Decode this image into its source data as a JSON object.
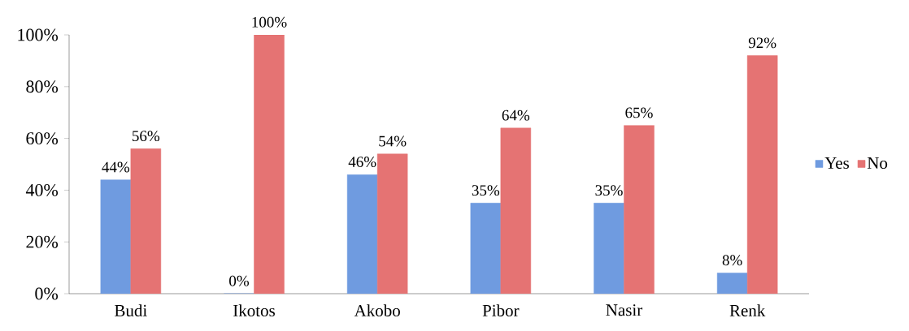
{
  "chart_data": {
    "type": "bar",
    "categories": [
      "Budi",
      "Ikotos",
      "Akobo",
      "Pibor",
      "Nasir",
      "Renk"
    ],
    "series": [
      {
        "name": "Yes",
        "color": "#6f9be0",
        "values": [
          44,
          0,
          46,
          35,
          35,
          8
        ],
        "value_labels": [
          "44%",
          "0%",
          "46%",
          "35%",
          "35%",
          "8%"
        ]
      },
      {
        "name": "No",
        "color": "#e57373",
        "values": [
          56,
          100,
          54,
          64,
          65,
          92
        ],
        "value_labels": [
          "56%",
          "100%",
          "54%",
          "64%",
          "65%",
          "92%"
        ]
      }
    ],
    "ylim": [
      0,
      100
    ],
    "yticks": [
      {
        "value": 0,
        "label": "0%"
      },
      {
        "value": 20,
        "label": "20%"
      },
      {
        "value": 40,
        "label": "40%"
      },
      {
        "value": 60,
        "label": "60%"
      },
      {
        "value": 80,
        "label": "80%"
      },
      {
        "value": 100,
        "label": "100%"
      }
    ],
    "grid": false,
    "legend": "right"
  }
}
